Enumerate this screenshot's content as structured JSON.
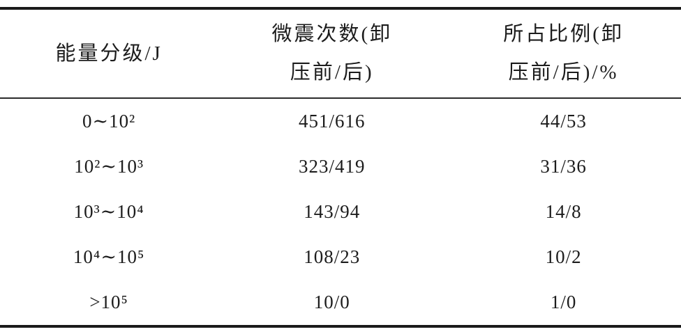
{
  "page": {
    "background_color": "#ffffff",
    "text_color": "#1c1c1c",
    "rule_color": "#1a1a1a"
  },
  "table": {
    "columns": [
      {
        "id": "energy",
        "header": "能量分级/J"
      },
      {
        "id": "count",
        "header": "微震次数(卸\n压前/后)"
      },
      {
        "id": "ratio",
        "header": "所占比例(卸\n压前/后)/%"
      }
    ],
    "rows": [
      {
        "energy": "0∼10²",
        "count": "451/616",
        "ratio": "44/53"
      },
      {
        "energy": "10²∼10³",
        "count": "323/419",
        "ratio": "31/36"
      },
      {
        "energy": "10³∼10⁴",
        "count": "143/94",
        "ratio": "14/8"
      },
      {
        "energy": "10⁴∼10⁵",
        "count": "108/23",
        "ratio": "10/2"
      },
      {
        "energy": ">10⁵",
        "count": "10/0",
        "ratio": "1/0"
      }
    ]
  },
  "chart_data": {
    "type": "table",
    "columns": [
      "能量分级/J",
      "微震次数(卸压前/后)",
      "所占比例(卸压前/后)/%"
    ],
    "rows": [
      [
        "0~10²",
        "451/616",
        "44/53"
      ],
      [
        "10²~10³",
        "323/419",
        "31/36"
      ],
      [
        "10³~10⁴",
        "143/94",
        "14/8"
      ],
      [
        "10⁴~10⁵",
        "108/23",
        "10/2"
      ],
      [
        ">10⁵",
        "10/0",
        "1/0"
      ]
    ]
  }
}
